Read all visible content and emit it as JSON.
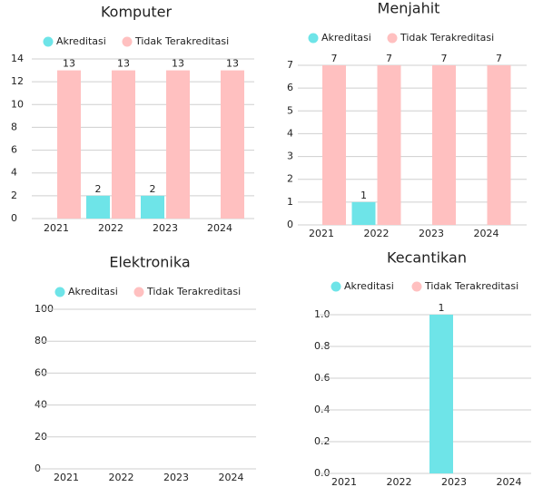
{
  "chart_data": [
    {
      "type": "bar",
      "title": "Komputer",
      "categories": [
        "2021",
        "2022",
        "2023",
        "2024"
      ],
      "series": [
        {
          "name": "Akreditasi",
          "color": "#6ee4e8",
          "values": [
            0,
            2,
            2,
            0
          ]
        },
        {
          "name": "Tidak Terakreditasi",
          "color": "#ffc0c0",
          "values": [
            13,
            13,
            13,
            13
          ]
        }
      ],
      "ylim": [
        0,
        14
      ],
      "yticks": [
        0,
        2,
        4,
        6,
        8,
        10,
        12,
        14
      ],
      "grid": true
    },
    {
      "type": "bar",
      "title": "Menjahit",
      "categories": [
        "2021",
        "2022",
        "2023",
        "2024"
      ],
      "series": [
        {
          "name": "Akreditasi",
          "color": "#6ee4e8",
          "values": [
            0,
            1,
            0,
            0
          ]
        },
        {
          "name": "Tidak Terakreditasi",
          "color": "#ffc0c0",
          "values": [
            7,
            7,
            7,
            7
          ]
        }
      ],
      "ylim": [
        0,
        7
      ],
      "yticks": [
        0,
        1,
        2,
        3,
        4,
        5,
        6,
        7
      ],
      "grid": true
    },
    {
      "type": "bar",
      "title": "Elektronika",
      "categories": [
        "2021",
        "2022",
        "2023",
        "2024"
      ],
      "series": [
        {
          "name": "Akreditasi",
          "color": "#6ee4e8",
          "values": [
            0,
            0,
            0,
            0
          ]
        },
        {
          "name": "Tidak Terakreditasi",
          "color": "#ffc0c0",
          "values": [
            0,
            0,
            0,
            0
          ]
        }
      ],
      "ylim": [
        0,
        100
      ],
      "yticks": [
        0,
        20,
        40,
        60,
        80,
        100
      ],
      "grid": true
    },
    {
      "type": "bar",
      "title": "Kecantikan",
      "categories": [
        "2021",
        "2022",
        "2023",
        "2024"
      ],
      "series": [
        {
          "name": "Akreditasi",
          "color": "#6ee4e8",
          "values": [
            0,
            0,
            1,
            0
          ]
        },
        {
          "name": "Tidak Terakreditasi",
          "color": "#ffc0c0",
          "values": [
            0,
            0,
            0,
            0
          ]
        }
      ],
      "ylim": [
        0,
        1
      ],
      "yticks": [
        {
          "value": 0,
          "label": "0.0"
        },
        0.2,
        0.4,
        0.6,
        0.8,
        {
          "value": 1,
          "label": "1.0"
        }
      ],
      "grid": true
    }
  ]
}
